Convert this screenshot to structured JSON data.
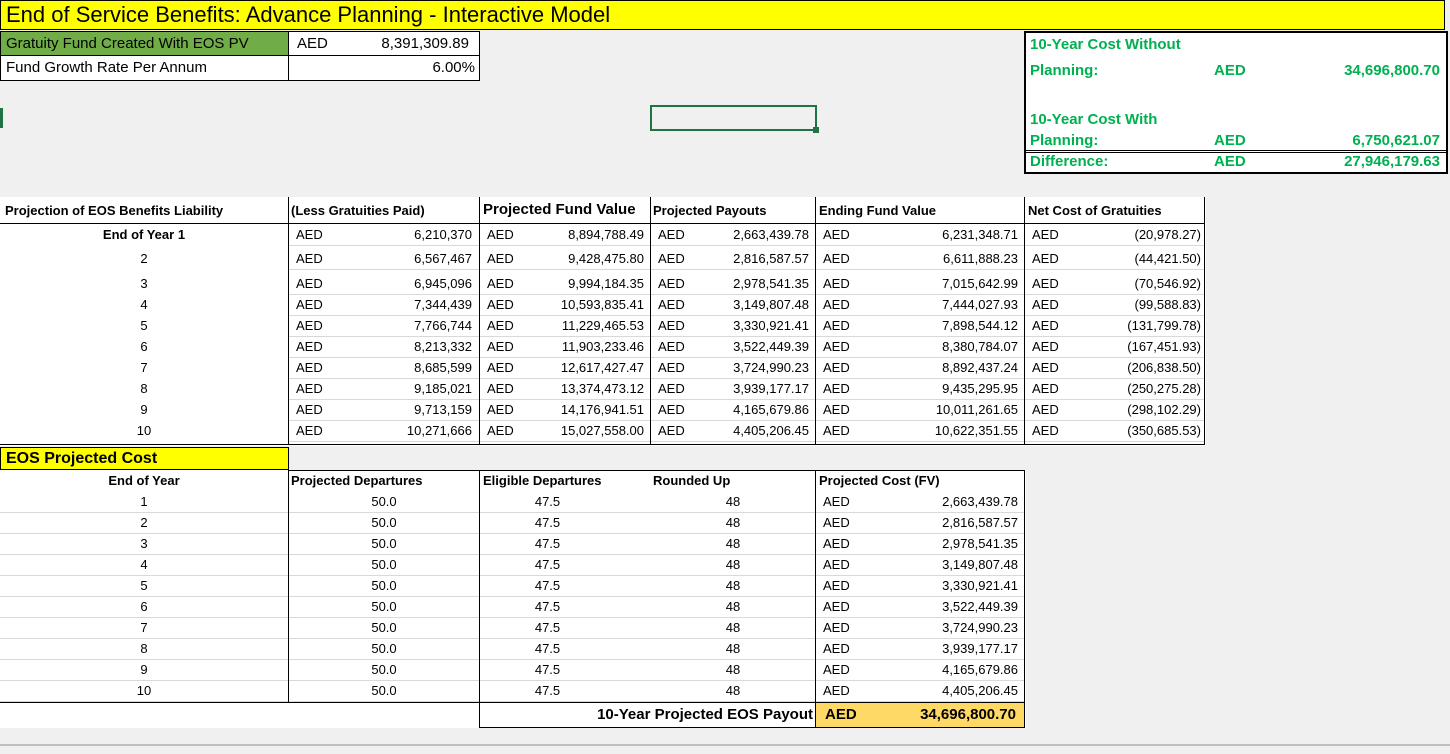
{
  "title": "End of Service Benefits: Advance Planning - Interactive Model",
  "inputs": [
    {
      "label": "Gratuity Fund Created With EOS PV",
      "currency": "AED",
      "value": "8,391,309.89"
    },
    {
      "label": "Fund Growth Rate Per Annum",
      "value": "6.00%"
    }
  ],
  "summary": {
    "without_label_1": "10-Year Cost Without",
    "without_label_2": "Planning:",
    "without_currency": "AED",
    "without_value": "34,696,800.70",
    "with_label_1": "10-Year Cost With",
    "with_label_2": "Planning:",
    "with_currency": "AED",
    "with_value": "6,750,621.07",
    "diff_label": "Difference:",
    "diff_currency": "AED",
    "diff_value": "27,946,179.63"
  },
  "projection": {
    "headers": [
      "Projection of EOS Benefits Liability",
      "(Less Gratuities Paid)",
      "Projected Fund Value",
      "Projected Payouts",
      "Ending Fund Value",
      "Net Cost of Gratuities"
    ],
    "rows": [
      [
        "End of Year 1",
        "AED",
        "6,210,370",
        "AED",
        "8,894,788.49",
        "AED",
        "2,663,439.78",
        "AED",
        "6,231,348.71",
        "AED",
        "(20,978.27)"
      ],
      [
        "2",
        "AED",
        "6,567,467",
        "AED",
        "9,428,475.80",
        "AED",
        "2,816,587.57",
        "AED",
        "6,611,888.23",
        "AED",
        "(44,421.50)"
      ],
      [
        "3",
        "AED",
        "6,945,096",
        "AED",
        "9,994,184.35",
        "AED",
        "2,978,541.35",
        "AED",
        "7,015,642.99",
        "AED",
        "(70,546.92)"
      ],
      [
        "4",
        "AED",
        "7,344,439",
        "AED",
        "10,593,835.41",
        "AED",
        "3,149,807.48",
        "AED",
        "7,444,027.93",
        "AED",
        "(99,588.83)"
      ],
      [
        "5",
        "AED",
        "7,766,744",
        "AED",
        "11,229,465.53",
        "AED",
        "3,330,921.41",
        "AED",
        "7,898,544.12",
        "AED",
        "(131,799.78)"
      ],
      [
        "6",
        "AED",
        "8,213,332",
        "AED",
        "11,903,233.46",
        "AED",
        "3,522,449.39",
        "AED",
        "8,380,784.07",
        "AED",
        "(167,451.93)"
      ],
      [
        "7",
        "AED",
        "8,685,599",
        "AED",
        "12,617,427.47",
        "AED",
        "3,724,990.23",
        "AED",
        "8,892,437.24",
        "AED",
        "(206,838.50)"
      ],
      [
        "8",
        "AED",
        "9,185,021",
        "AED",
        "13,374,473.12",
        "AED",
        "3,939,177.17",
        "AED",
        "9,435,295.95",
        "AED",
        "(250,275.28)"
      ],
      [
        "9",
        "AED",
        "9,713,159",
        "AED",
        "14,176,941.51",
        "AED",
        "4,165,679.86",
        "AED",
        "10,011,261.65",
        "AED",
        "(298,102.29)"
      ],
      [
        "10",
        "AED",
        "10,271,666",
        "AED",
        "15,027,558.00",
        "AED",
        "4,405,206.45",
        "AED",
        "10,622,351.55",
        "AED",
        "(350,685.53)"
      ]
    ]
  },
  "eos": {
    "section_title": "EOS Projected Cost",
    "headers": [
      "End of Year",
      "Projected Departures",
      "Eligible Departures",
      "Rounded Up",
      "Projected Cost (FV)"
    ],
    "rows": [
      [
        "1",
        "50.0",
        "47.5",
        "48",
        "AED",
        "2,663,439.78"
      ],
      [
        "2",
        "50.0",
        "47.5",
        "48",
        "AED",
        "2,816,587.57"
      ],
      [
        "3",
        "50.0",
        "47.5",
        "48",
        "AED",
        "2,978,541.35"
      ],
      [
        "4",
        "50.0",
        "47.5",
        "48",
        "AED",
        "3,149,807.48"
      ],
      [
        "5",
        "50.0",
        "47.5",
        "48",
        "AED",
        "3,330,921.41"
      ],
      [
        "6",
        "50.0",
        "47.5",
        "48",
        "AED",
        "3,522,449.39"
      ],
      [
        "7",
        "50.0",
        "47.5",
        "48",
        "AED",
        "3,724,990.23"
      ],
      [
        "8",
        "50.0",
        "47.5",
        "48",
        "AED",
        "3,939,177.17"
      ],
      [
        "9",
        "50.0",
        "47.5",
        "48",
        "AED",
        "4,165,679.86"
      ],
      [
        "10",
        "50.0",
        "47.5",
        "48",
        "AED",
        "4,405,206.45"
      ]
    ],
    "total_label": "10-Year Projected EOS Payout",
    "total_currency": "AED",
    "total_value": "34,696,800.70"
  },
  "colors": {
    "title_bg": "#ffff00",
    "input_bg": "#70ad47",
    "green_text": "#00b050",
    "total_bg": "#ffd966",
    "selection": "#217346"
  }
}
